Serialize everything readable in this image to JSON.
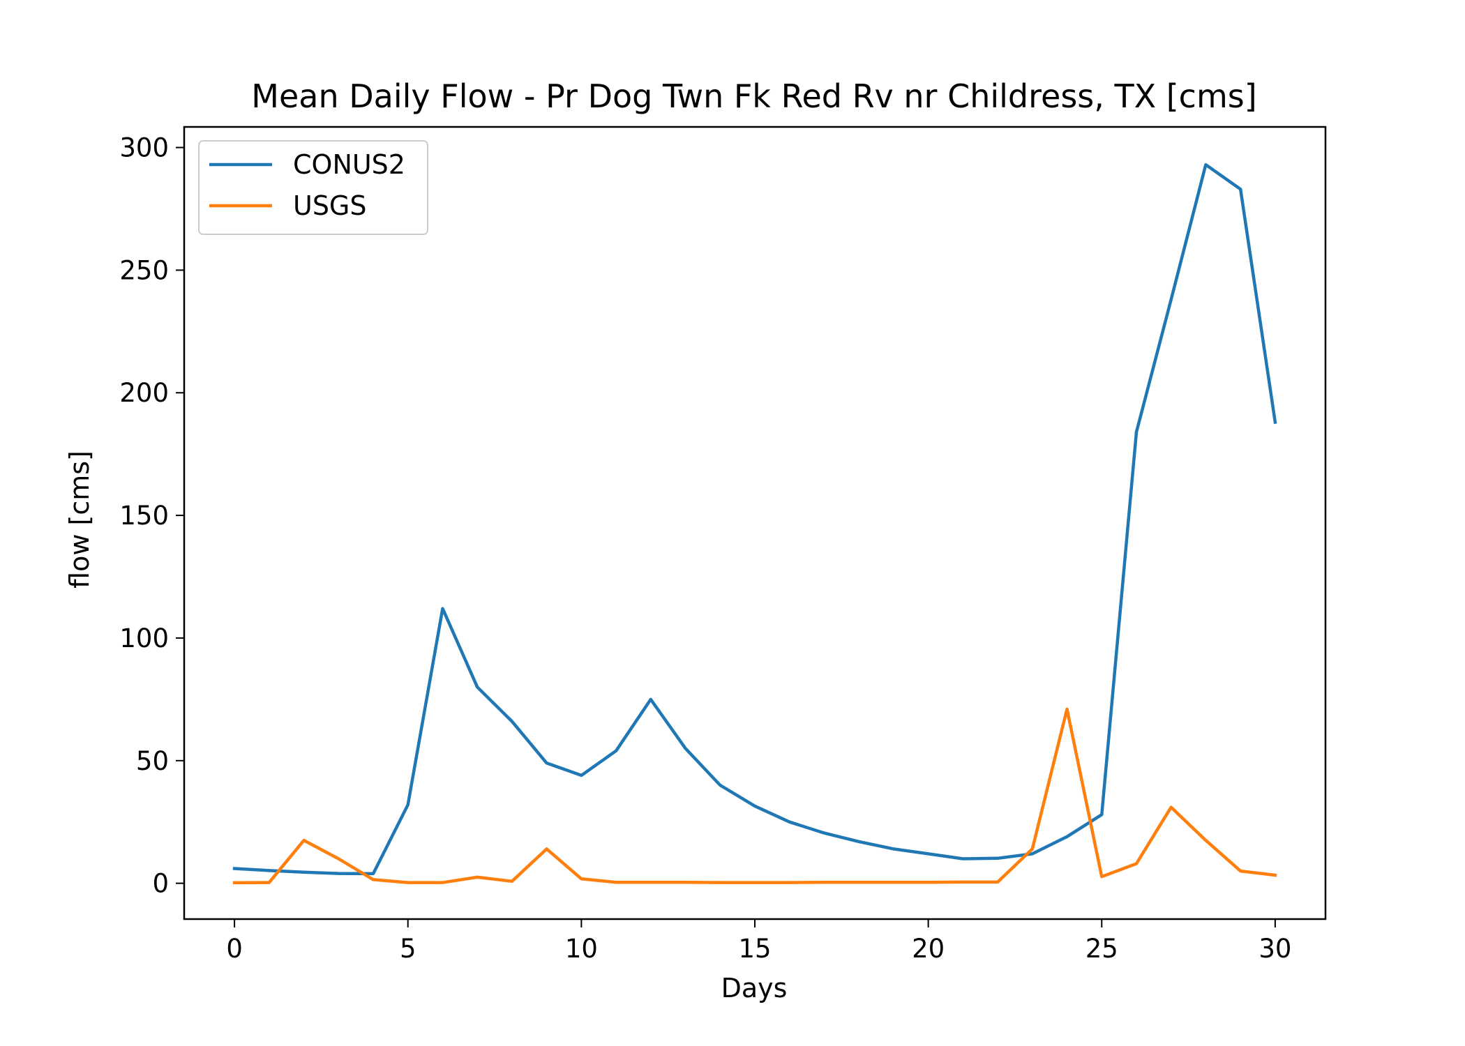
{
  "chart_data": {
    "type": "line",
    "title": "Mean Daily Flow - Pr Dog Twn Fk Red Rv nr Childress, TX [cms]",
    "xlabel": "Days",
    "ylabel": "flow [cms]",
    "xlim": [
      -1.45,
      31.45
    ],
    "ylim": [
      -14.6,
      308.4
    ],
    "xticks": [
      0,
      5,
      10,
      15,
      20,
      25,
      30
    ],
    "yticks": [
      0,
      50,
      100,
      150,
      200,
      250,
      300
    ],
    "grid": false,
    "legend": {
      "position": "top-left"
    },
    "x": [
      0,
      1,
      2,
      3,
      4,
      5,
      6,
      7,
      8,
      9,
      10,
      11,
      12,
      13,
      14,
      15,
      16,
      17,
      18,
      19,
      20,
      21,
      22,
      23,
      24,
      25,
      26,
      27,
      28,
      29,
      30
    ],
    "series": [
      {
        "name": "CONUS2",
        "color": "#1f77b4",
        "values": [
          6.0,
          5.2,
          4.5,
          4.0,
          3.9,
          32.0,
          112.0,
          80.0,
          66.0,
          49.0,
          44.0,
          54.0,
          75.0,
          55.0,
          40.0,
          31.5,
          25.0,
          20.5,
          17.0,
          14.0,
          12.0,
          10.0,
          10.2,
          12.0,
          19.0,
          28.0,
          184.0,
          238.0,
          293.0,
          283.0,
          188.0
        ]
      },
      {
        "name": "USGS",
        "color": "#ff7f0e",
        "values": [
          0.2,
          0.3,
          17.5,
          10.0,
          1.5,
          0.3,
          0.3,
          2.5,
          0.8,
          14.0,
          1.8,
          0.4,
          0.4,
          0.4,
          0.3,
          0.3,
          0.3,
          0.4,
          0.4,
          0.4,
          0.4,
          0.5,
          0.5,
          14.0,
          71.0,
          2.7,
          8.0,
          31.0,
          17.5,
          5.0,
          3.3
        ]
      }
    ]
  }
}
